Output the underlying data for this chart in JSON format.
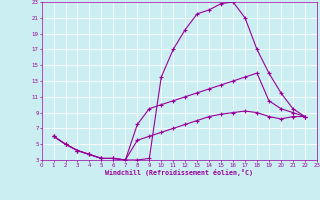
{
  "xlabel": "Windchill (Refroidissement éolien,°C)",
  "bg_color": "#cbeef3",
  "line_color": "#990099",
  "grid_color": "#ffffff",
  "xlim": [
    0,
    23
  ],
  "ylim": [
    3,
    23
  ],
  "xticks": [
    0,
    1,
    2,
    3,
    4,
    5,
    6,
    7,
    8,
    9,
    10,
    11,
    12,
    13,
    14,
    15,
    16,
    17,
    18,
    19,
    20,
    21,
    22,
    23
  ],
  "yticks": [
    3,
    5,
    7,
    9,
    11,
    13,
    15,
    17,
    19,
    21,
    23
  ],
  "curve1_x": [
    1,
    2,
    3,
    4,
    5,
    6,
    7,
    8,
    9,
    10,
    11,
    12,
    13,
    14,
    15,
    16,
    17,
    18,
    19,
    20,
    21,
    22
  ],
  "curve1_y": [
    6,
    5,
    4.2,
    3.7,
    3.2,
    3.2,
    3.0,
    3.0,
    3.2,
    13.5,
    17.0,
    19.5,
    21.5,
    22.0,
    22.8,
    23.0,
    21.0,
    17.0,
    14.0,
    11.5,
    9.5,
    8.5
  ],
  "curve2_x": [
    1,
    2,
    3,
    4,
    5,
    6,
    7,
    8,
    9,
    10,
    11,
    12,
    13,
    14,
    15,
    16,
    17,
    18,
    19,
    20,
    21,
    22
  ],
  "curve2_y": [
    6,
    5,
    4.2,
    3.7,
    3.2,
    3.2,
    3.0,
    7.5,
    9.5,
    10.0,
    10.5,
    11.0,
    11.5,
    12.0,
    12.5,
    13.0,
    13.5,
    14.0,
    10.5,
    9.5,
    9.0,
    8.5
  ],
  "curve3_x": [
    1,
    2,
    3,
    4,
    5,
    6,
    7,
    8,
    9,
    10,
    11,
    12,
    13,
    14,
    15,
    16,
    17,
    18,
    19,
    20,
    21,
    22
  ],
  "curve3_y": [
    6,
    5,
    4.2,
    3.7,
    3.2,
    3.2,
    3.0,
    5.5,
    6.0,
    6.5,
    7.0,
    7.5,
    8.0,
    8.5,
    8.8,
    9.0,
    9.2,
    9.0,
    8.5,
    8.2,
    8.5,
    8.5
  ]
}
